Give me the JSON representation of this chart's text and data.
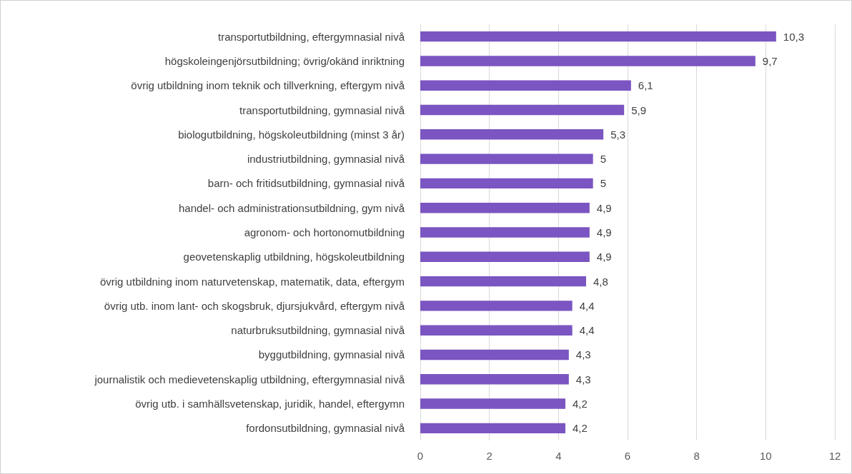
{
  "chart_data": {
    "type": "bar",
    "orientation": "horizontal",
    "categories": [
      "transportutbildning, eftergymnasial nivå",
      "högskoleingenjörsutbildning; övrig/okänd inriktning",
      "övrig utbildning inom teknik och tillverkning, eftergym nivå",
      "transportutbildning, gymnasial nivå",
      "biologutbildning, högskoleutbildning (minst 3 år)",
      "industriutbildning, gymnasial nivå",
      "barn- och fritidsutbildning, gymnasial nivå",
      "handel- och administrationsutbildning, gym nivå",
      "agronom- och hortonomutbildning",
      "geovetenskaplig utbildning, högskoleutbildning",
      "övrig utbildning inom naturvetenskap, matematik, data, eftergym",
      "övrig utb. inom lant- och skogsbruk, djursjukvård, eftergym nivå",
      "naturbruksutbildning, gymnasial nivå",
      "byggutbildning, gymnasial nivå",
      "journalistik och medievetenskaplig utbildning, eftergymnasial nivå",
      "övrig utb. i samhällsvetenskap, juridik, handel, eftergymn",
      "fordonsutbildning, gymnasial nivå"
    ],
    "values": [
      10.3,
      9.7,
      6.1,
      5.9,
      5.3,
      5,
      5,
      4.9,
      4.9,
      4.9,
      4.8,
      4.4,
      4.4,
      4.3,
      4.3,
      4.2,
      4.2
    ],
    "value_labels": [
      "10,3",
      "9,7",
      "6,1",
      "5,9",
      "5,3",
      "5",
      "5",
      "4,9",
      "4,9",
      "4,9",
      "4,8",
      "4,4",
      "4,4",
      "4,3",
      "4,3",
      "4,2",
      "4,2"
    ],
    "color": "#7b55c1",
    "xlim": [
      0,
      12
    ],
    "xticks": [
      0,
      2,
      4,
      6,
      8,
      10,
      12
    ],
    "grid": "x"
  }
}
